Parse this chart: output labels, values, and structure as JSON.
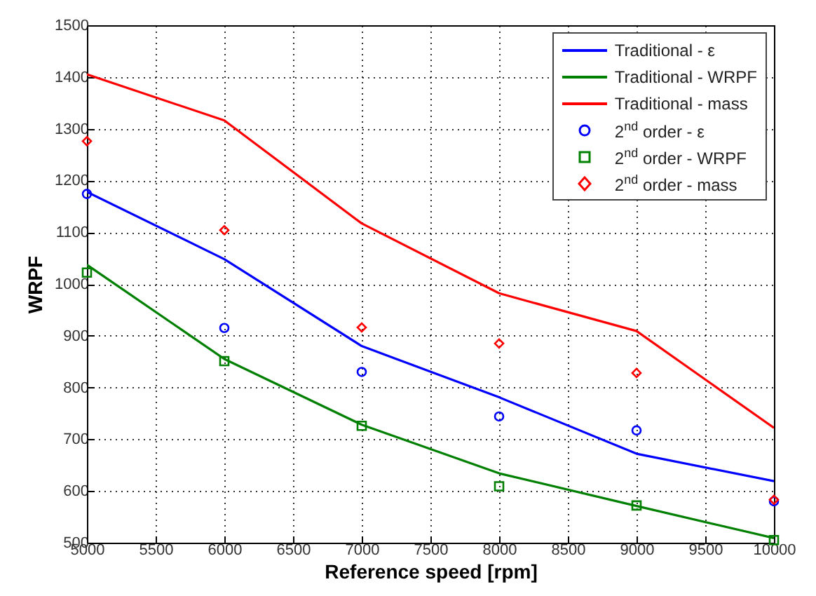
{
  "chart_data": {
    "type": "line",
    "xlabel": "Reference speed [rpm]",
    "ylabel": "WRPF",
    "x": [
      5000,
      6000,
      7000,
      8000,
      9000,
      10000
    ],
    "xlim": [
      5000,
      10000
    ],
    "xticks": [
      5000,
      5500,
      6000,
      6500,
      7000,
      7500,
      8000,
      8500,
      9000,
      9500,
      10000
    ],
    "ylim": [
      500,
      1500
    ],
    "yticks": [
      500,
      600,
      700,
      800,
      900,
      1000,
      1100,
      1200,
      1300,
      1400,
      1500
    ],
    "grid": true,
    "legend": "top right",
    "series": [
      {
        "name": "Traditional - ε",
        "type": "line",
        "marker": "none",
        "color": "#0000ff",
        "values": [
          1178,
          1048,
          880,
          781,
          672,
          619
        ]
      },
      {
        "name": "Traditional - WRPF",
        "type": "line",
        "marker": "none",
        "color": "#008000",
        "values": [
          1037,
          855,
          728,
          634,
          571,
          509
        ]
      },
      {
        "name": "Traditional - mass",
        "type": "line",
        "marker": "none",
        "color": "#ff0000",
        "values": [
          1405,
          1316,
          1117,
          982,
          909,
          722
        ]
      },
      {
        "name": "2$^{nd}$ order - ε",
        "type": "scatter",
        "marker": "circle",
        "color": "#0000ff",
        "values": [
          1174,
          915,
          830,
          744,
          717,
          580
        ]
      },
      {
        "name": "2$^{nd}$ order - WRPF",
        "type": "scatter",
        "marker": "square",
        "color": "#008000",
        "values": [
          1022,
          851,
          726,
          609,
          572,
          505
        ]
      },
      {
        "name": "2$^{nd}$ order - mass",
        "type": "scatter",
        "marker": "diamond",
        "color": "#ff0000",
        "values": [
          1276,
          1104,
          916,
          885,
          828,
          583
        ]
      }
    ]
  }
}
